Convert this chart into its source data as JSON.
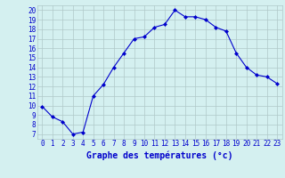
{
  "hours": [
    0,
    1,
    2,
    3,
    4,
    5,
    6,
    7,
    8,
    9,
    10,
    11,
    12,
    13,
    14,
    15,
    16,
    17,
    18,
    19,
    20,
    21,
    22,
    23
  ],
  "temps": [
    9.9,
    8.8,
    8.3,
    7.0,
    7.2,
    11.0,
    12.2,
    14.0,
    15.5,
    17.0,
    17.2,
    18.2,
    18.5,
    20.0,
    19.3,
    19.3,
    19.0,
    18.2,
    17.8,
    15.5,
    14.0,
    13.2,
    13.0,
    12.3
  ],
  "line_color": "#0000cc",
  "marker": "D",
  "marker_size": 2,
  "bg_color": "#d4f0f0",
  "grid_color": "#b0c8c8",
  "xlabel": "Graphe des températures (°c)",
  "xlabel_color": "#0000cc",
  "xlim": [
    -0.5,
    23.5
  ],
  "ylim": [
    6.5,
    20.5
  ],
  "xticks": [
    0,
    1,
    2,
    3,
    4,
    5,
    6,
    7,
    8,
    9,
    10,
    11,
    12,
    13,
    14,
    15,
    16,
    17,
    18,
    19,
    20,
    21,
    22,
    23
  ],
  "yticks": [
    7,
    8,
    9,
    10,
    11,
    12,
    13,
    14,
    15,
    16,
    17,
    18,
    19,
    20
  ],
  "tick_fontsize": 5.5,
  "xlabel_fontsize": 7.0
}
